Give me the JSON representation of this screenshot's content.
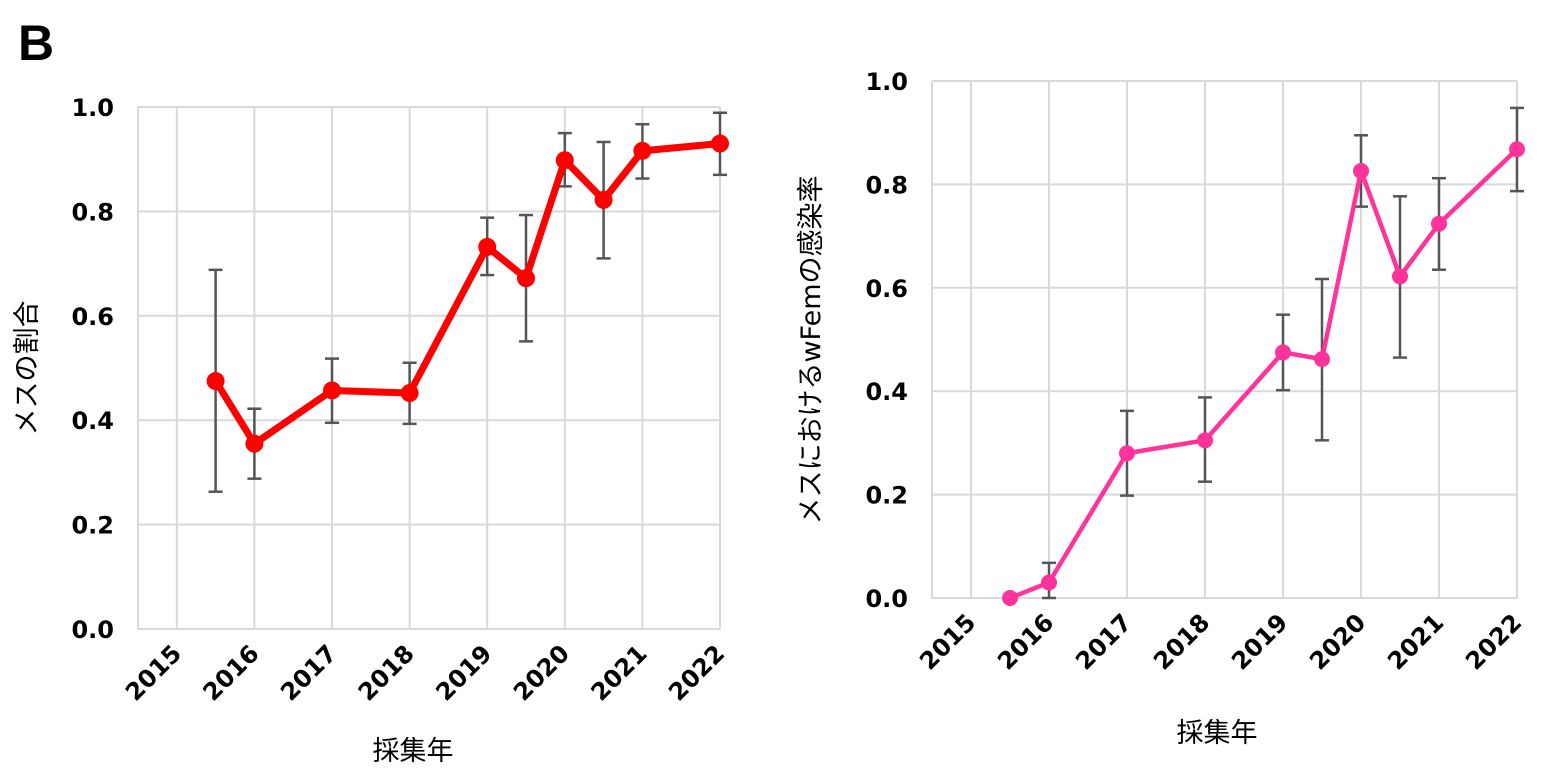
{
  "panel_label": "B",
  "chart_data": [
    {
      "type": "line",
      "x_tick_labels": [
        "2015",
        "2016",
        "2017",
        "2018",
        "2019",
        "2020",
        "2021",
        "2022"
      ],
      "xlabel": "採集年",
      "ylabel": "メスの割合",
      "ylim": [
        0,
        1.0
      ],
      "y_ticks": [
        "0.0",
        "0.2",
        "0.4",
        "0.6",
        "0.8",
        "1.0"
      ],
      "grid": true,
      "color": "#ff0000",
      "series": [
        {
          "x": [
            2015.5,
            2016,
            2017,
            2018,
            2019,
            2019.5,
            2020,
            2020.5,
            2021,
            2022
          ],
          "values": [
            0.475,
            0.355,
            0.457,
            0.452,
            0.732,
            0.672,
            0.898,
            0.822,
            0.916,
            0.93
          ],
          "error_low": [
            0.263,
            0.288,
            0.395,
            0.393,
            0.678,
            0.551,
            0.848,
            0.71,
            0.863,
            0.87
          ],
          "error_high": [
            0.688,
            0.422,
            0.518,
            0.51,
            0.788,
            0.793,
            0.95,
            0.933,
            0.967,
            0.989
          ]
        }
      ]
    },
    {
      "type": "line",
      "x_tick_labels": [
        "2015",
        "2016",
        "2017",
        "2018",
        "2019",
        "2020",
        "2021",
        "2022"
      ],
      "xlabel": "採集年",
      "ylabel": "メスにおけるwFemの感染率",
      "ylim": [
        0,
        1.0
      ],
      "y_ticks": [
        "0.0",
        "0.2",
        "0.4",
        "0.6",
        "0.8",
        "1.0"
      ],
      "grid": true,
      "color": "#ff3399",
      "series": [
        {
          "x": [
            2015.5,
            2016,
            2017,
            2018,
            2019,
            2019.5,
            2020,
            2020.5,
            2021,
            2022
          ],
          "values": [
            0.0,
            0.03,
            0.28,
            0.305,
            0.475,
            0.462,
            0.826,
            0.622,
            0.724,
            0.868
          ],
          "error_low": [
            0.0,
            0.0,
            0.198,
            0.225,
            0.402,
            0.305,
            0.757,
            0.465,
            0.635,
            0.787
          ],
          "error_high": [
            0.0,
            0.068,
            0.362,
            0.388,
            0.548,
            0.617,
            0.895,
            0.777,
            0.812,
            0.948
          ]
        }
      ]
    }
  ]
}
